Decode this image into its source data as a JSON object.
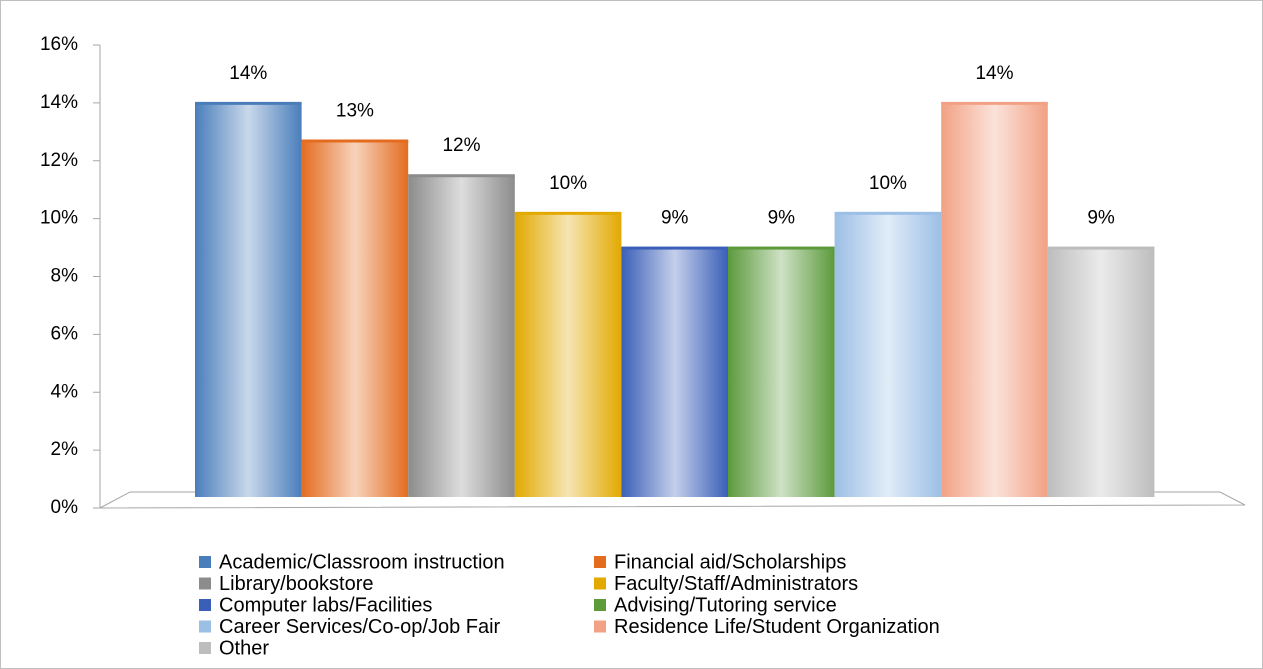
{
  "chart_data": {
    "type": "bar",
    "series": [
      {
        "name": "Academic/Classroom instruction",
        "color": "#4a7ebb",
        "values": [
          14
        ],
        "value_labels": [
          "14%"
        ]
      },
      {
        "name": "Financial aid/Scholarships",
        "color": "#e46c1f",
        "values": [
          12.7
        ],
        "value_labels": [
          "13%"
        ]
      },
      {
        "name": "Library/bookstore",
        "color": "#8c8c8c",
        "values": [
          11.5
        ],
        "value_labels": [
          "12%"
        ]
      },
      {
        "name": "Faculty/Staff/Administrators",
        "color": "#e2a900",
        "values": [
          10.2
        ],
        "value_labels": [
          "10%"
        ]
      },
      {
        "name": "Computer labs/Facilities",
        "color": "#3a5fb8",
        "values": [
          9
        ],
        "value_labels": [
          "9%"
        ]
      },
      {
        "name": "Advising/Tutoring service",
        "color": "#5c9a3c",
        "values": [
          9
        ],
        "value_labels": [
          "9%"
        ]
      },
      {
        "name": "Career Services/Co-op/Job Fair",
        "color": "#9cbfe6",
        "values": [
          10.2
        ],
        "value_labels": [
          "10%"
        ]
      },
      {
        "name": "Residence Life/Student Organization",
        "color": "#f2a185",
        "values": [
          14
        ],
        "value_labels": [
          "14%"
        ]
      },
      {
        "name": "Other",
        "color": "#bdbdbd",
        "values": [
          9
        ],
        "value_labels": [
          "9%"
        ]
      }
    ],
    "ylim": [
      0,
      16
    ],
    "yticks": [
      {
        "value": 0,
        "label": "0%"
      },
      {
        "value": 2,
        "label": "2%"
      },
      {
        "value": 4,
        "label": "4%"
      },
      {
        "value": 6,
        "label": "6%"
      },
      {
        "value": 8,
        "label": "8%"
      },
      {
        "value": 10,
        "label": "10%"
      },
      {
        "value": 12,
        "label": "12%"
      },
      {
        "value": 14,
        "label": "14%"
      },
      {
        "value": 16,
        "label": "16%"
      }
    ]
  }
}
